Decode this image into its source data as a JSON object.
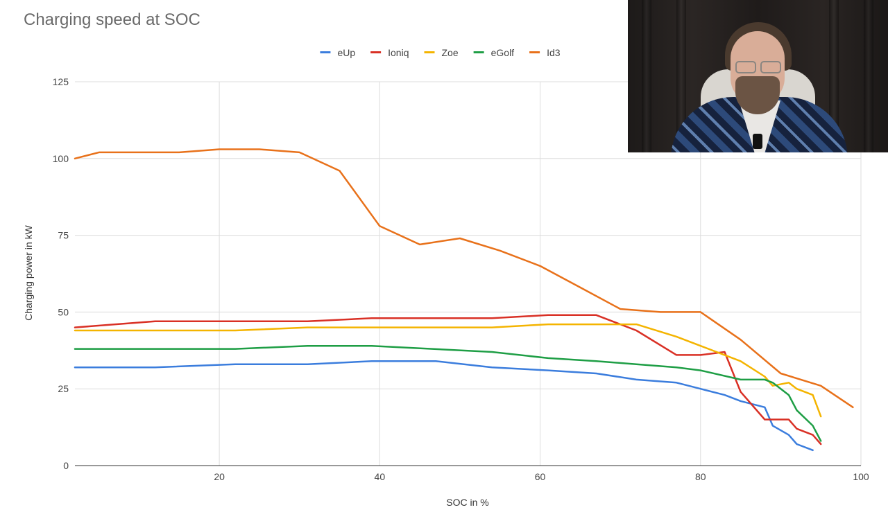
{
  "chart_data": {
    "type": "line",
    "title": "Charging speed at SOC",
    "xlabel": "SOC in %",
    "ylabel": "Charging power in kW",
    "xlim": [
      2,
      100
    ],
    "ylim": [
      0,
      125
    ],
    "xticks": [
      20,
      40,
      60,
      80,
      100
    ],
    "yticks": [
      0,
      25,
      50,
      75,
      100,
      125
    ],
    "grid": true,
    "legend": "top-center",
    "series": [
      {
        "name": "eUp",
        "color": "#3b7ddd",
        "points": [
          [
            2,
            32
          ],
          [
            12,
            32
          ],
          [
            22,
            33
          ],
          [
            31,
            33
          ],
          [
            39,
            34
          ],
          [
            47,
            34
          ],
          [
            54,
            32
          ],
          [
            61,
            31
          ],
          [
            67,
            30
          ],
          [
            72,
            28
          ],
          [
            77,
            27
          ],
          [
            80,
            25
          ],
          [
            83,
            23
          ],
          [
            85,
            21
          ],
          [
            88,
            19
          ],
          [
            89,
            13
          ],
          [
            91,
            10
          ],
          [
            92,
            7
          ],
          [
            94,
            5
          ]
        ]
      },
      {
        "name": "Ioniq",
        "color": "#d93025",
        "points": [
          [
            2,
            45
          ],
          [
            12,
            47
          ],
          [
            22,
            47
          ],
          [
            31,
            47
          ],
          [
            39,
            48
          ],
          [
            54,
            48
          ],
          [
            61,
            49
          ],
          [
            67,
            49
          ],
          [
            72,
            44
          ],
          [
            77,
            36
          ],
          [
            80,
            36
          ],
          [
            83,
            37
          ],
          [
            85,
            24
          ],
          [
            88,
            15
          ],
          [
            91,
            15
          ],
          [
            92,
            12
          ],
          [
            94,
            10
          ],
          [
            95,
            7
          ]
        ]
      },
      {
        "name": "Zoe",
        "color": "#f4b400",
        "points": [
          [
            2,
            44
          ],
          [
            12,
            44
          ],
          [
            22,
            44
          ],
          [
            31,
            45
          ],
          [
            39,
            45
          ],
          [
            54,
            45
          ],
          [
            61,
            46
          ],
          [
            67,
            46
          ],
          [
            72,
            46
          ],
          [
            77,
            42
          ],
          [
            80,
            39
          ],
          [
            85,
            34
          ],
          [
            88,
            29
          ],
          [
            89,
            26
          ],
          [
            91,
            27
          ],
          [
            92,
            25
          ],
          [
            94,
            23
          ],
          [
            95,
            16
          ]
        ]
      },
      {
        "name": "eGolf",
        "color": "#1e9e45",
        "points": [
          [
            2,
            38
          ],
          [
            12,
            38
          ],
          [
            22,
            38
          ],
          [
            31,
            39
          ],
          [
            39,
            39
          ],
          [
            54,
            37
          ],
          [
            61,
            35
          ],
          [
            67,
            34
          ],
          [
            72,
            33
          ],
          [
            77,
            32
          ],
          [
            80,
            31
          ],
          [
            85,
            28
          ],
          [
            88,
            28
          ],
          [
            89,
            27
          ],
          [
            91,
            23
          ],
          [
            92,
            18
          ],
          [
            94,
            13
          ],
          [
            95,
            8
          ]
        ]
      },
      {
        "name": "Id3",
        "color": "#e8711a",
        "points": [
          [
            2,
            100
          ],
          [
            5,
            102
          ],
          [
            10,
            102
          ],
          [
            15,
            102
          ],
          [
            20,
            103
          ],
          [
            25,
            103
          ],
          [
            30,
            102
          ],
          [
            35,
            96
          ],
          [
            40,
            78
          ],
          [
            45,
            72
          ],
          [
            50,
            74
          ],
          [
            55,
            70
          ],
          [
            60,
            65
          ],
          [
            65,
            58
          ],
          [
            70,
            51
          ],
          [
            75,
            50
          ],
          [
            80,
            50
          ],
          [
            85,
            41
          ],
          [
            90,
            30
          ],
          [
            95,
            26
          ],
          [
            99,
            19
          ]
        ]
      }
    ]
  },
  "overlay": {
    "webcam_feed": "presenter webcam"
  }
}
